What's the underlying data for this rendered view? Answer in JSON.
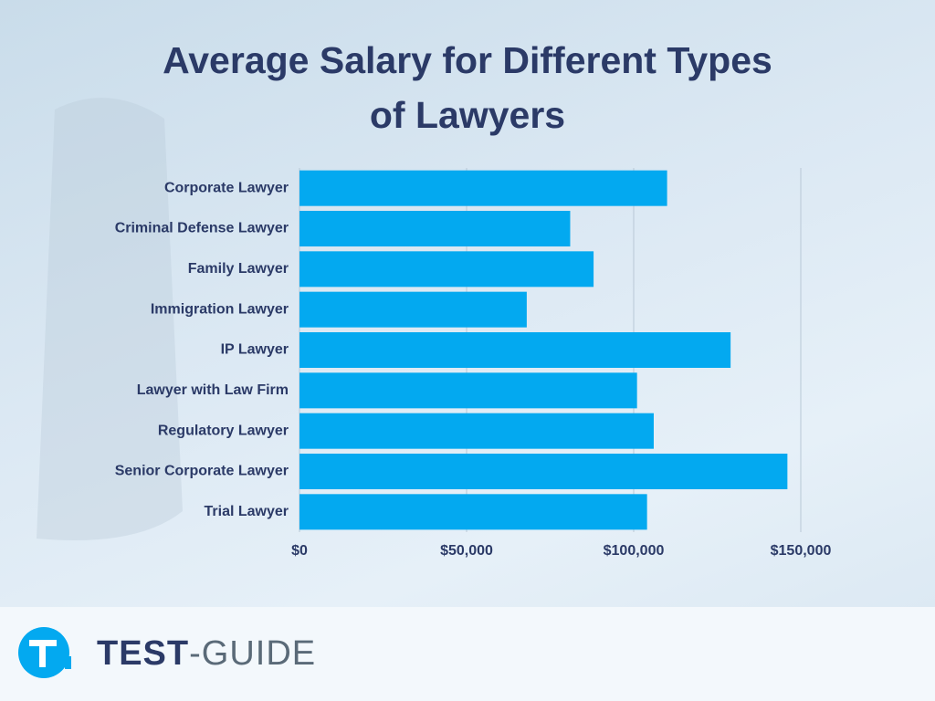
{
  "chart_data": {
    "type": "barh",
    "title": "Average Salary for Different Types of Lawyers",
    "categories": [
      "Corporate Lawyer",
      "Criminal Defense Lawyer",
      "Family Lawyer",
      "Immigration Lawyer",
      "IP Lawyer",
      "Lawyer with Law Firm",
      "Regulatory Lawyer",
      "Senior Corporate Lawyer",
      "Trial Lawyer"
    ],
    "values": [
      110000,
      81000,
      88000,
      68000,
      129000,
      101000,
      106000,
      146000,
      104000
    ],
    "color": "#03a9f0",
    "xlim": [
      0,
      150000
    ],
    "xticks": [
      {
        "value": 0,
        "label": "$0"
      },
      {
        "value": 50000,
        "label": "$50,000"
      },
      {
        "value": 100000,
        "label": "$100,000"
      },
      {
        "value": 150000,
        "label": "$150,000"
      }
    ],
    "grid": true
  },
  "footer": {
    "brand_bold": "TEST",
    "brand_light": "-GUIDE"
  }
}
